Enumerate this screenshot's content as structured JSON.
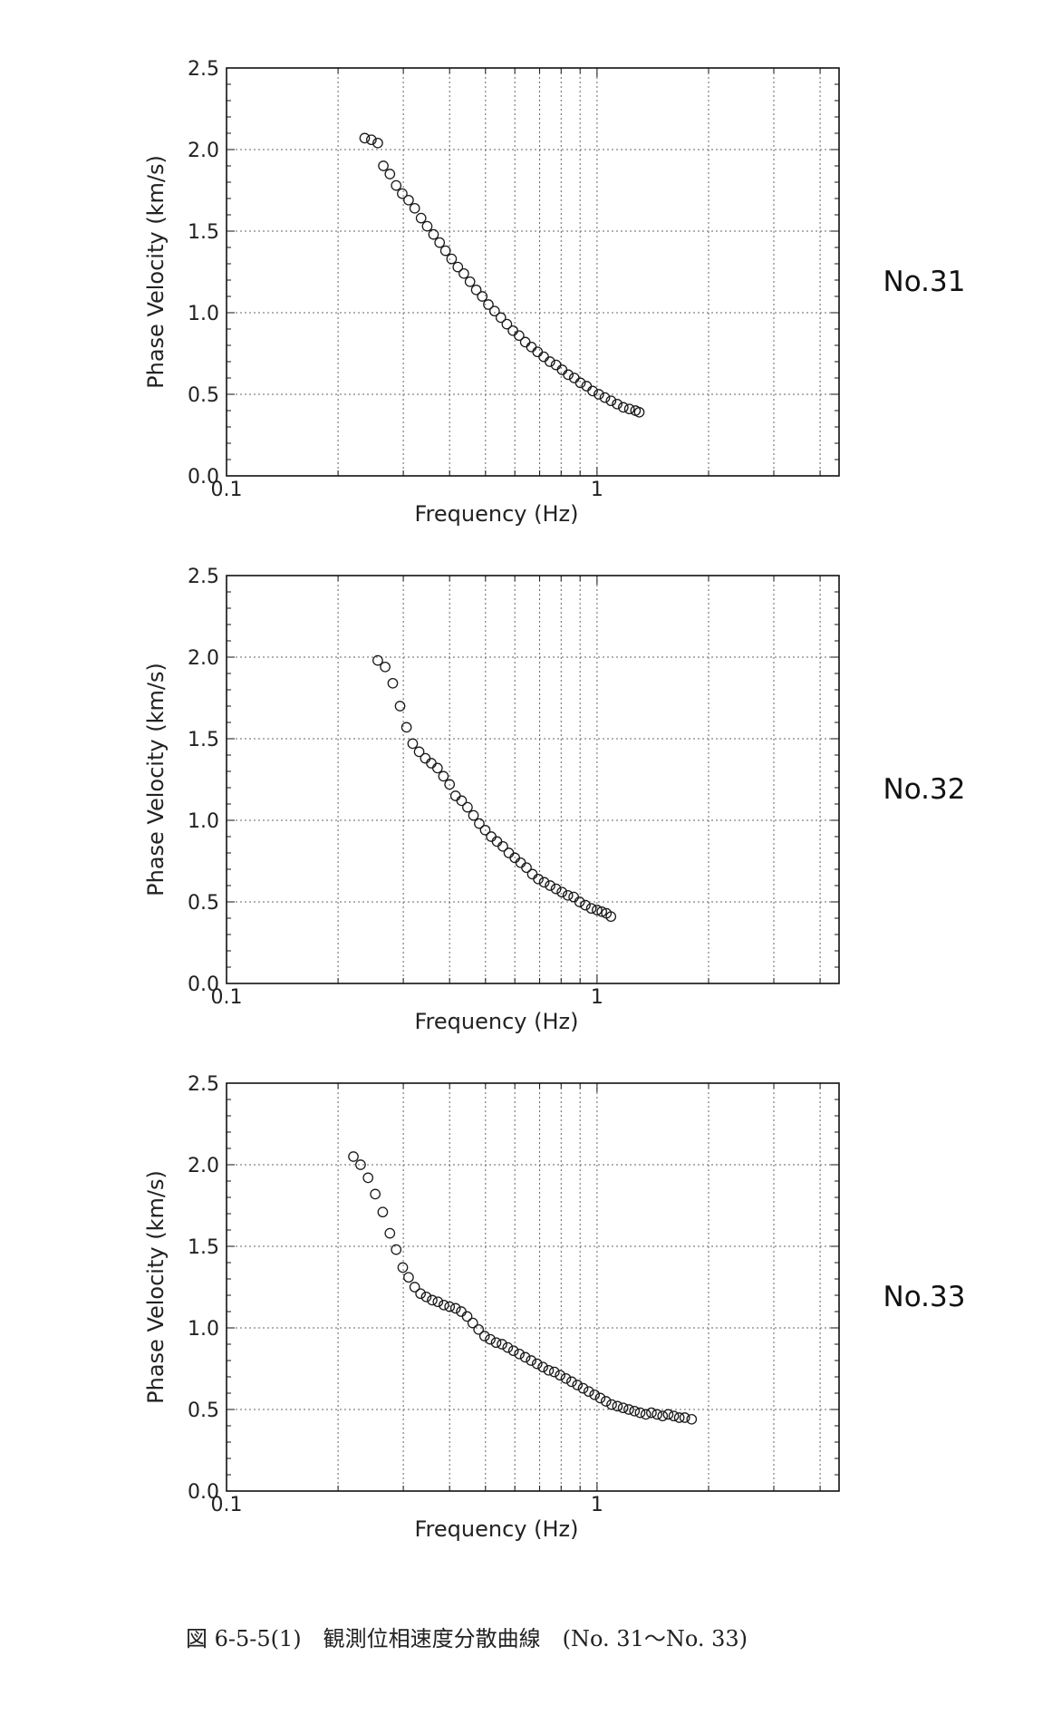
{
  "caption": "図 6-5-5(1)　観測位相速度分散曲線　(No. 31～No. 33)",
  "chart_data": [
    {
      "type": "scatter",
      "station": "No.31",
      "xlabel": "Frequency (Hz)",
      "ylabel": "Phase Velocity (km/s)",
      "xscale": "log",
      "xlim": [
        0.1,
        4.5
      ],
      "ylim": [
        0.0,
        2.5
      ],
      "xticks": [
        0.1,
        1
      ],
      "yticks": [
        0.0,
        0.5,
        1.0,
        1.5,
        2.0,
        2.5
      ],
      "ytick_labels": [
        "0.0",
        "0.5",
        "1.0",
        "1.5",
        "2.0",
        "2.5"
      ],
      "xtick_labels": [
        "0.1",
        "1"
      ],
      "grid": true,
      "marker": "open-circle",
      "x": [
        0.236,
        0.246,
        0.256,
        0.265,
        0.276,
        0.287,
        0.298,
        0.31,
        0.322,
        0.335,
        0.348,
        0.362,
        0.376,
        0.39,
        0.405,
        0.421,
        0.437,
        0.454,
        0.472,
        0.49,
        0.509,
        0.529,
        0.55,
        0.571,
        0.593,
        0.616,
        0.64,
        0.665,
        0.691,
        0.718,
        0.746,
        0.775,
        0.805,
        0.836,
        0.868,
        0.902,
        0.937,
        0.973,
        1.011,
        1.05,
        1.091,
        1.133,
        1.177,
        1.223,
        1.27,
        1.3
      ],
      "y": [
        2.07,
        2.06,
        2.04,
        1.9,
        1.85,
        1.78,
        1.73,
        1.69,
        1.64,
        1.58,
        1.53,
        1.48,
        1.43,
        1.38,
        1.33,
        1.28,
        1.24,
        1.19,
        1.14,
        1.1,
        1.05,
        1.01,
        0.97,
        0.93,
        0.89,
        0.86,
        0.82,
        0.79,
        0.76,
        0.73,
        0.7,
        0.68,
        0.65,
        0.62,
        0.6,
        0.57,
        0.55,
        0.52,
        0.5,
        0.48,
        0.46,
        0.44,
        0.42,
        0.41,
        0.4,
        0.39
      ]
    },
    {
      "type": "scatter",
      "station": "No.32",
      "xlabel": "Frequency (Hz)",
      "ylabel": "Phase Velocity (km/s)",
      "xscale": "log",
      "xlim": [
        0.1,
        4.5
      ],
      "ylim": [
        0.0,
        2.5
      ],
      "xticks": [
        0.1,
        1
      ],
      "yticks": [
        0.0,
        0.5,
        1.0,
        1.5,
        2.0,
        2.5
      ],
      "ytick_labels": [
        "0.0",
        "0.5",
        "1.0",
        "1.5",
        "2.0",
        "2.5"
      ],
      "xtick_labels": [
        "0.1",
        "1"
      ],
      "grid": true,
      "marker": "open-circle",
      "x": [
        0.256,
        0.268,
        0.281,
        0.294,
        0.306,
        0.318,
        0.331,
        0.344,
        0.357,
        0.371,
        0.385,
        0.4,
        0.415,
        0.431,
        0.447,
        0.464,
        0.481,
        0.499,
        0.518,
        0.537,
        0.557,
        0.578,
        0.6,
        0.622,
        0.645,
        0.669,
        0.694,
        0.72,
        0.747,
        0.775,
        0.804,
        0.834,
        0.865,
        0.897,
        0.93,
        0.965,
        1.0,
        1.03,
        1.06,
        1.09
      ],
      "y": [
        1.98,
        1.94,
        1.84,
        1.7,
        1.57,
        1.47,
        1.42,
        1.38,
        1.35,
        1.32,
        1.27,
        1.22,
        1.15,
        1.12,
        1.08,
        1.03,
        0.98,
        0.94,
        0.9,
        0.87,
        0.84,
        0.8,
        0.77,
        0.74,
        0.71,
        0.67,
        0.64,
        0.62,
        0.6,
        0.58,
        0.56,
        0.54,
        0.53,
        0.5,
        0.48,
        0.46,
        0.45,
        0.44,
        0.43,
        0.41
      ]
    },
    {
      "type": "scatter",
      "station": "No.33",
      "xlabel": "Frequency (Hz)",
      "ylabel": "Phase Velocity (km/s)",
      "xscale": "log",
      "xlim": [
        0.1,
        4.5
      ],
      "ylim": [
        0.0,
        2.5
      ],
      "xticks": [
        0.1,
        1
      ],
      "yticks": [
        0.0,
        0.5,
        1.0,
        1.5,
        2.0,
        2.5
      ],
      "ytick_labels": [
        "0.0",
        "0.5",
        "1.0",
        "1.5",
        "2.0",
        "2.5"
      ],
      "xtick_labels": [
        "0.1",
        "1"
      ],
      "grid": true,
      "marker": "open-circle",
      "x": [
        0.22,
        0.23,
        0.241,
        0.252,
        0.264,
        0.276,
        0.287,
        0.299,
        0.31,
        0.322,
        0.334,
        0.346,
        0.359,
        0.372,
        0.386,
        0.4,
        0.415,
        0.43,
        0.446,
        0.462,
        0.479,
        0.497,
        0.515,
        0.534,
        0.554,
        0.574,
        0.595,
        0.617,
        0.64,
        0.664,
        0.689,
        0.714,
        0.74,
        0.767,
        0.795,
        0.824,
        0.854,
        0.885,
        0.917,
        0.95,
        0.985,
        1.02,
        1.057,
        1.095,
        1.135,
        1.176,
        1.218,
        1.262,
        1.307,
        1.354,
        1.402,
        1.452,
        1.503,
        1.556,
        1.611,
        1.667,
        1.725,
        1.8
      ],
      "y": [
        2.05,
        2.0,
        1.92,
        1.82,
        1.71,
        1.58,
        1.48,
        1.37,
        1.31,
        1.25,
        1.21,
        1.19,
        1.17,
        1.16,
        1.14,
        1.13,
        1.12,
        1.1,
        1.07,
        1.03,
        0.99,
        0.95,
        0.93,
        0.91,
        0.9,
        0.88,
        0.86,
        0.84,
        0.82,
        0.8,
        0.78,
        0.76,
        0.74,
        0.73,
        0.71,
        0.69,
        0.67,
        0.65,
        0.63,
        0.61,
        0.59,
        0.57,
        0.55,
        0.53,
        0.52,
        0.51,
        0.5,
        0.49,
        0.48,
        0.47,
        0.48,
        0.47,
        0.46,
        0.47,
        0.46,
        0.45,
        0.45,
        0.44
      ]
    }
  ]
}
